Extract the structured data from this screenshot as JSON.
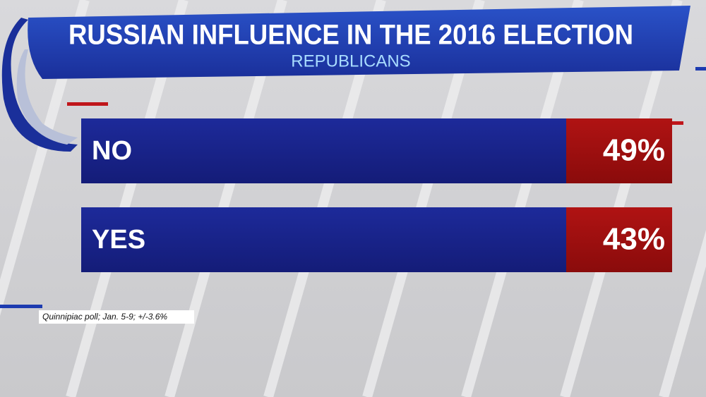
{
  "header": {
    "title": "RUSSIAN INFLUENCE IN THE 2016 ELECTION",
    "subtitle": "REPUBLICANS"
  },
  "rows": [
    {
      "label": "NO",
      "value": "49%"
    },
    {
      "label": "YES",
      "value": "43%"
    }
  ],
  "source": "Quinnipiac poll; Jan. 5-9; +/-3.6%"
}
